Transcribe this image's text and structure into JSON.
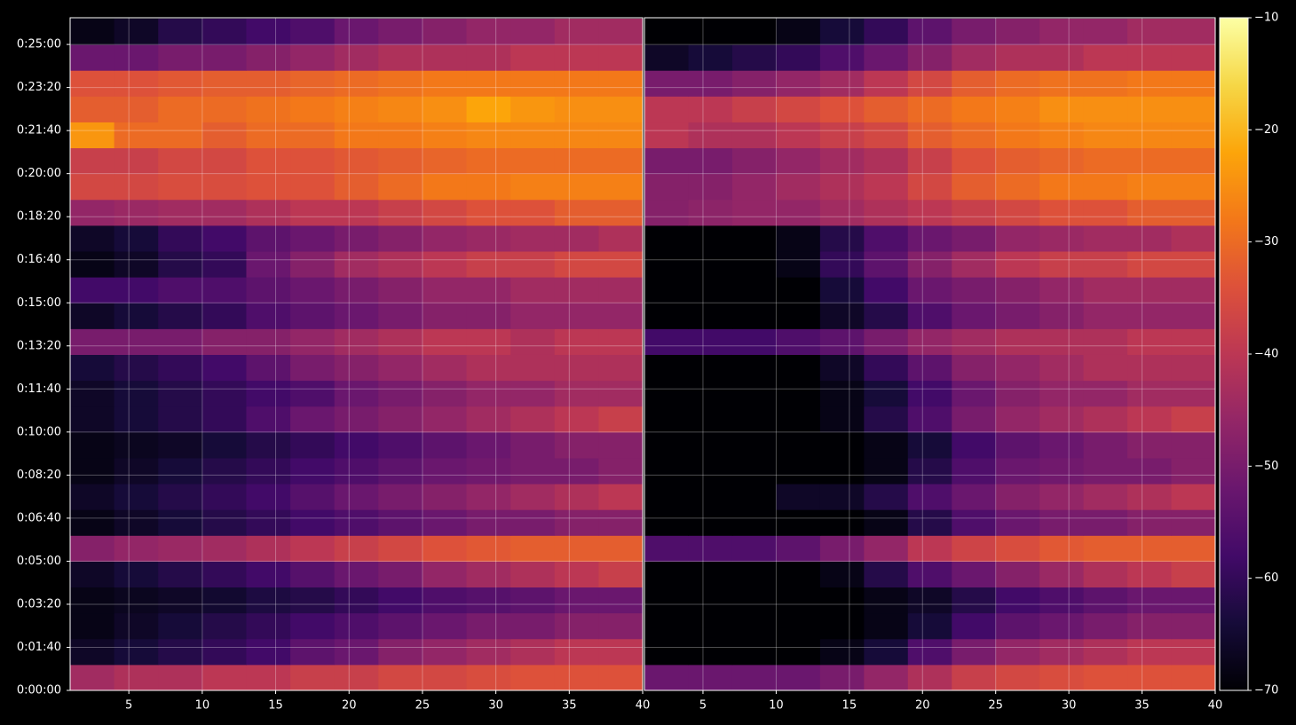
{
  "chart_data": {
    "type": "heatmap",
    "colormap": "inferno",
    "grid": true,
    "xlim": [
      1,
      40
    ],
    "xticks": [
      5,
      10,
      15,
      20,
      25,
      30,
      35,
      40
    ],
    "ylim": [
      0,
      1562
    ],
    "yticks": [
      {
        "value": 0,
        "label": "0:00:00"
      },
      {
        "value": 100,
        "label": "0:01:40"
      },
      {
        "value": 200,
        "label": "0:03:20"
      },
      {
        "value": 300,
        "label": "0:05:00"
      },
      {
        "value": 400,
        "label": "0:06:40"
      },
      {
        "value": 500,
        "label": "0:08:20"
      },
      {
        "value": 600,
        "label": "0:10:00"
      },
      {
        "value": 700,
        "label": "0:11:40"
      },
      {
        "value": 800,
        "label": "0:13:20"
      },
      {
        "value": 900,
        "label": "0:15:00"
      },
      {
        "value": 1000,
        "label": "0:16:40"
      },
      {
        "value": 1100,
        "label": "0:18:20"
      },
      {
        "value": 1200,
        "label": "0:20:00"
      },
      {
        "value": 1300,
        "label": "0:21:40"
      },
      {
        "value": 1400,
        "label": "0:23:20"
      },
      {
        "value": 1500,
        "label": "0:25:00"
      }
    ],
    "clim": [
      -70,
      -10
    ],
    "cticks": [
      {
        "value": -70,
        "label": "−70"
      },
      {
        "value": -60,
        "label": "−60"
      },
      {
        "value": -50,
        "label": "−50"
      },
      {
        "value": -40,
        "label": "−40"
      },
      {
        "value": -30,
        "label": "−30"
      },
      {
        "value": -20,
        "label": "−20"
      },
      {
        "value": -10,
        "label": "−10"
      }
    ],
    "x_edges": [
      1,
      4,
      7,
      10,
      13,
      16,
      19,
      22,
      25,
      28,
      31,
      34,
      37,
      40
    ],
    "y_edges": [
      0,
      60,
      120,
      180,
      240,
      300,
      360,
      420,
      480,
      540,
      600,
      660,
      720,
      780,
      840,
      900,
      960,
      1020,
      1080,
      1140,
      1200,
      1260,
      1320,
      1380,
      1440,
      1500,
      1560
    ],
    "panels": [
      {
        "values": [
          [
            -44,
            -42,
            -42,
            -40,
            -40,
            -38,
            -38,
            -36,
            -36,
            -35,
            -34,
            -34,
            -34
          ],
          [
            -66,
            -64,
            -62,
            -60,
            -58,
            -54,
            -52,
            -48,
            -46,
            -44,
            -42,
            -40,
            -40
          ],
          [
            -68,
            -66,
            -64,
            -62,
            -60,
            -58,
            -56,
            -54,
            -52,
            -50,
            -50,
            -48,
            -48
          ],
          [
            -68,
            -67,
            -66,
            -65,
            -63,
            -62,
            -60,
            -58,
            -56,
            -55,
            -54,
            -52,
            -52
          ],
          [
            -66,
            -64,
            -62,
            -60,
            -58,
            -55,
            -52,
            -50,
            -46,
            -44,
            -42,
            -40,
            -38
          ],
          [
            -48,
            -46,
            -45,
            -44,
            -42,
            -40,
            -38,
            -36,
            -34,
            -33,
            -32,
            -32,
            -32
          ],
          [
            -68,
            -66,
            -64,
            -62,
            -60,
            -58,
            -56,
            -54,
            -52,
            -50,
            -50,
            -48,
            -48
          ],
          [
            -66,
            -64,
            -62,
            -60,
            -58,
            -55,
            -52,
            -50,
            -48,
            -46,
            -44,
            -42,
            -40
          ],
          [
            -68,
            -66,
            -64,
            -62,
            -60,
            -58,
            -56,
            -54,
            -52,
            -51,
            -50,
            -50,
            -48
          ],
          [
            -68,
            -67,
            -66,
            -64,
            -62,
            -60,
            -58,
            -56,
            -54,
            -52,
            -50,
            -48,
            -48
          ],
          [
            -66,
            -64,
            -62,
            -60,
            -56,
            -52,
            -50,
            -48,
            -46,
            -44,
            -42,
            -40,
            -38
          ],
          [
            -66,
            -64,
            -62,
            -60,
            -58,
            -56,
            -52,
            -50,
            -48,
            -46,
            -46,
            -44,
            -44
          ],
          [
            -64,
            -62,
            -60,
            -58,
            -54,
            -50,
            -48,
            -46,
            -44,
            -42,
            -42,
            -42,
            -42
          ],
          [
            -50,
            -50,
            -50,
            -48,
            -48,
            -46,
            -44,
            -42,
            -40,
            -40,
            -42,
            -40,
            -40
          ],
          [
            -66,
            -64,
            -62,
            -60,
            -56,
            -54,
            -52,
            -50,
            -48,
            -48,
            -46,
            -46,
            -46
          ],
          [
            -58,
            -58,
            -56,
            -56,
            -54,
            -52,
            -50,
            -48,
            -46,
            -46,
            -44,
            -44,
            -44
          ],
          [
            -68,
            -66,
            -62,
            -60,
            -52,
            -48,
            -44,
            -42,
            -40,
            -38,
            -38,
            -36,
            -36
          ],
          [
            -66,
            -64,
            -60,
            -58,
            -54,
            -52,
            -50,
            -48,
            -46,
            -45,
            -44,
            -44,
            -42
          ],
          [
            -46,
            -45,
            -44,
            -44,
            -42,
            -40,
            -40,
            -38,
            -36,
            -34,
            -34,
            -32,
            -32
          ],
          [
            -36,
            -36,
            -35,
            -35,
            -34,
            -34,
            -32,
            -30,
            -28,
            -28,
            -27,
            -27,
            -27
          ],
          [
            -38,
            -38,
            -36,
            -36,
            -34,
            -34,
            -33,
            -32,
            -31,
            -30,
            -30,
            -30,
            -30
          ],
          [
            -24,
            -30,
            -30,
            -32,
            -30,
            -30,
            -28,
            -28,
            -27,
            -26,
            -26,
            -26,
            -26
          ],
          [
            -32,
            -32,
            -30,
            -30,
            -29,
            -28,
            -27,
            -26,
            -25,
            -22,
            -24,
            -25,
            -25
          ],
          [
            -34,
            -34,
            -33,
            -32,
            -32,
            -31,
            -30,
            -29,
            -28,
            -28,
            -28,
            -28,
            -28
          ],
          [
            -52,
            -52,
            -50,
            -50,
            -48,
            -46,
            -44,
            -42,
            -42,
            -42,
            -40,
            -40,
            -40
          ],
          [
            -68,
            -66,
            -62,
            -60,
            -58,
            -56,
            -52,
            -50,
            -48,
            -46,
            -46,
            -44,
            -44
          ]
        ]
      },
      {
        "values": [
          [
            -52,
            -52,
            -52,
            -52,
            -50,
            -46,
            -42,
            -38,
            -36,
            -35,
            -34,
            -34,
            -34
          ],
          [
            -70,
            -70,
            -70,
            -70,
            -68,
            -64,
            -56,
            -50,
            -46,
            -44,
            -42,
            -40,
            -40
          ],
          [
            -70,
            -70,
            -70,
            -70,
            -70,
            -68,
            -64,
            -58,
            -54,
            -52,
            -50,
            -48,
            -48
          ],
          [
            -70,
            -70,
            -70,
            -70,
            -70,
            -68,
            -66,
            -62,
            -58,
            -56,
            -54,
            -52,
            -52
          ],
          [
            -70,
            -70,
            -70,
            -70,
            -68,
            -62,
            -56,
            -52,
            -48,
            -45,
            -42,
            -40,
            -38
          ],
          [
            -56,
            -56,
            -56,
            -54,
            -50,
            -46,
            -40,
            -37,
            -35,
            -33,
            -32,
            -32,
            -32
          ],
          [
            -70,
            -70,
            -70,
            -70,
            -70,
            -68,
            -62,
            -56,
            -52,
            -50,
            -50,
            -48,
            -48
          ],
          [
            -70,
            -70,
            -70,
            -66,
            -66,
            -62,
            -56,
            -52,
            -48,
            -46,
            -44,
            -42,
            -40
          ],
          [
            -70,
            -70,
            -70,
            -70,
            -70,
            -68,
            -62,
            -56,
            -52,
            -51,
            -50,
            -50,
            -48
          ],
          [
            -70,
            -70,
            -70,
            -70,
            -70,
            -68,
            -64,
            -58,
            -54,
            -52,
            -50,
            -48,
            -48
          ],
          [
            -70,
            -70,
            -70,
            -70,
            -68,
            -62,
            -56,
            -50,
            -46,
            -44,
            -42,
            -40,
            -38
          ],
          [
            -70,
            -70,
            -70,
            -70,
            -68,
            -64,
            -58,
            -52,
            -48,
            -46,
            -46,
            -44,
            -44
          ],
          [
            -70,
            -70,
            -70,
            -70,
            -66,
            -60,
            -54,
            -48,
            -46,
            -44,
            -42,
            -42,
            -42
          ],
          [
            -58,
            -58,
            -58,
            -56,
            -54,
            -50,
            -46,
            -44,
            -42,
            -42,
            -42,
            -40,
            -40
          ],
          [
            -70,
            -70,
            -70,
            -70,
            -66,
            -62,
            -56,
            -52,
            -50,
            -48,
            -46,
            -46,
            -46
          ],
          [
            -70,
            -70,
            -70,
            -70,
            -64,
            -58,
            -52,
            -50,
            -48,
            -46,
            -44,
            -44,
            -44
          ],
          [
            -70,
            -70,
            -70,
            -68,
            -60,
            -54,
            -48,
            -44,
            -40,
            -38,
            -38,
            -36,
            -36
          ],
          [
            -70,
            -70,
            -70,
            -68,
            -62,
            -56,
            -52,
            -50,
            -46,
            -45,
            -44,
            -44,
            -42
          ],
          [
            -48,
            -47,
            -46,
            -46,
            -44,
            -42,
            -40,
            -38,
            -36,
            -34,
            -34,
            -32,
            -32
          ],
          [
            -48,
            -48,
            -46,
            -44,
            -42,
            -40,
            -36,
            -32,
            -30,
            -28,
            -28,
            -27,
            -27
          ],
          [
            -50,
            -50,
            -48,
            -46,
            -44,
            -42,
            -38,
            -34,
            -32,
            -31,
            -30,
            -30,
            -30
          ],
          [
            -40,
            -42,
            -42,
            -40,
            -38,
            -36,
            -32,
            -30,
            -28,
            -27,
            -26,
            -26,
            -26
          ],
          [
            -40,
            -40,
            -38,
            -36,
            -34,
            -32,
            -30,
            -28,
            -27,
            -25,
            -25,
            -25,
            -25
          ],
          [
            -50,
            -50,
            -48,
            -46,
            -44,
            -40,
            -36,
            -32,
            -30,
            -29,
            -29,
            -28,
            -28
          ],
          [
            -66,
            -64,
            -62,
            -60,
            -56,
            -52,
            -48,
            -44,
            -42,
            -42,
            -40,
            -40,
            -40
          ],
          [
            -70,
            -70,
            -70,
            -68,
            -64,
            -60,
            -54,
            -50,
            -48,
            -46,
            -46,
            -44,
            -44
          ]
        ]
      }
    ]
  }
}
